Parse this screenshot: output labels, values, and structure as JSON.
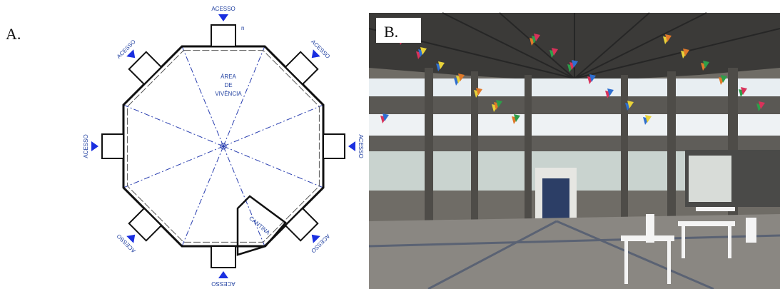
{
  "panels": {
    "a": {
      "label": "A.",
      "plan": {
        "area_label": [
          "ÁREA",
          "DE",
          "VIVÊNCIA"
        ],
        "canteen": "CANTINA",
        "mark": "n",
        "access": [
          "ACESSO",
          "ACESSO",
          "ACESSO",
          "ACESSO",
          "ACESSO",
          "ACESSO",
          "ACESSO",
          "ACESSO"
        ]
      }
    },
    "b": {
      "label": "B."
    }
  }
}
